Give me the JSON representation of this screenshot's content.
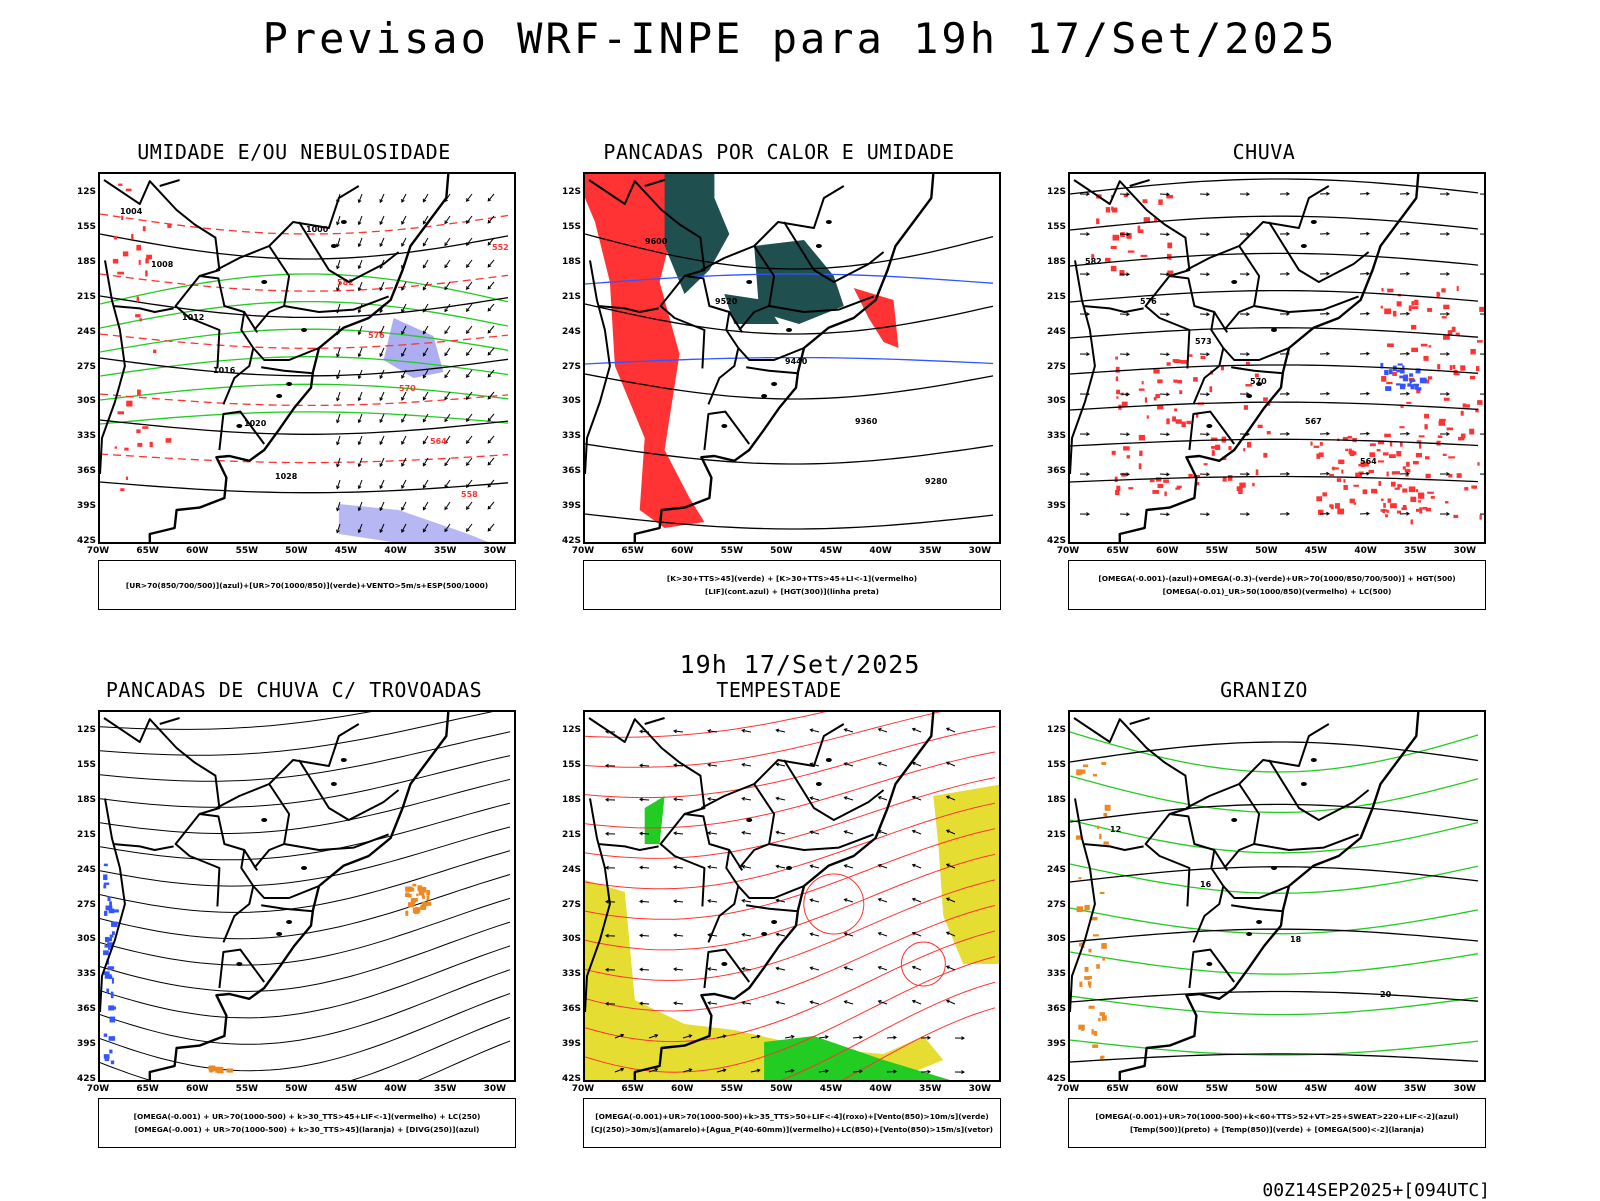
{
  "title": "Previsao WRF-INPE  para 19h 17/Set/2025",
  "middle_title": "19h 17/Set/2025",
  "footer": "00Z14SEP2025+[094UTC]",
  "lat_labels": [
    "12S",
    "15S",
    "18S",
    "21S",
    "24S",
    "27S",
    "30S",
    "33S",
    "36S",
    "39S",
    "42S"
  ],
  "lon_labels": [
    "70W",
    "65W",
    "60W",
    "55W",
    "50W",
    "45W",
    "40W",
    "35W",
    "30W"
  ],
  "colors": {
    "red": "#ff3333",
    "green": "#22cc22",
    "blue": "#3355ff",
    "lightblue": "#9999ee",
    "darkteal": "#1f4f4f",
    "yellow": "#e6dd33",
    "orange": "#ee8822"
  },
  "panels": [
    {
      "id": "umidade",
      "title": "UMIDADE E/OU NEBULOSIDADE",
      "legend": [
        "[UR>70(850/700/500)](azul)+[UR>70(1000/850)](verde)+VENTO>5m/s+ESP(500/1000)"
      ],
      "contour_labels": [
        "1004",
        "1008",
        "1012",
        "1016",
        "1020",
        "1028",
        "1000",
        "582",
        "576",
        "570",
        "564",
        "558",
        "552"
      ]
    },
    {
      "id": "pancadas-calor",
      "title": "PANCADAS POR CALOR E UMIDADE",
      "legend": [
        "[K>30+TTS>45](verde) + [K>30+TTS>45+LI<-1](vermelho)",
        "[LIF](cont.azul) + [HGT(300)](linha preta)"
      ],
      "contour_labels": [
        "9600",
        "9520",
        "9440",
        "9360",
        "9280"
      ]
    },
    {
      "id": "chuva",
      "title": "CHUVA",
      "legend": [
        "[OMEGA(-0.001)-(azul)+OMEGA(-0.3)-(verde)+UR>70(1000/850/700/500)] + HGT(500)",
        "[OMEGA(-0.01)_UR>50(1000/850)(vermelho) + LC(500)"
      ],
      "contour_labels": [
        "582",
        "576",
        "573",
        "570",
        "567",
        "564"
      ]
    },
    {
      "id": "pancadas-trovoadas",
      "title": "PANCADAS DE CHUVA C/ TROVOADAS",
      "legend": [
        "[OMEGA(-0.001) + UR>70(1000-500) + k>30_TTS>45+LIF<-1](vermelho) + LC(250)",
        "[OMEGA(-0.001) + UR>70(1000-500) + k>30_TTS>45](laranja) + [DIVG(250)](azul)"
      ],
      "contour_labels": []
    },
    {
      "id": "tempestade",
      "title": "TEMPESTADE",
      "legend": [
        "[OMEGA(-0.001)+UR>70(1000-500)+k>35_TTS>50+LIF<-4](roxo)+[Vento(850)>10m/s](verde)",
        "[CJ(250)>30m/s](amarelo)+[Agua_P(40-60mm)](vermelho)+LC(850)+[Vento(850)>15m/s](vetor)"
      ],
      "contour_labels": []
    },
    {
      "id": "granizo",
      "title": "GRANIZO",
      "legend": [
        "[OMEGA(-0.001)+UR>70(1000-500)+k<60+TTS>52+VT>25+SWEAT>220+LIF<-2](azul)",
        "[Temp(500)](preto) + [Temp(850)](verde) + [OMEGA(500)<-2](laranja)"
      ],
      "contour_labels": [
        "12",
        "16",
        "18",
        "20"
      ]
    }
  ]
}
